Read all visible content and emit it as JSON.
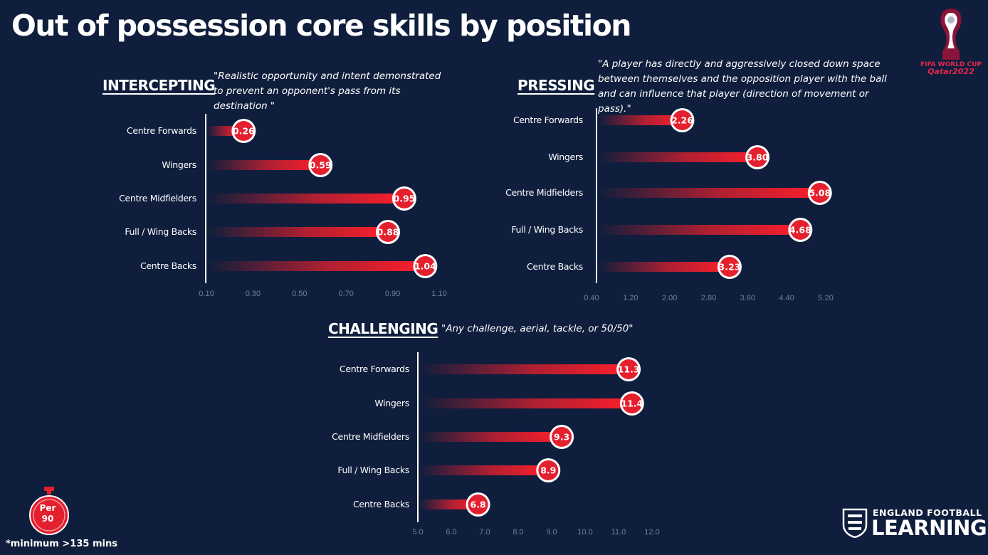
{
  "title": "Out of possession core skills by position",
  "logo": {
    "brand_line1": "FIFA WORLD CUP",
    "brand_line2": "Qatar2022"
  },
  "per90": {
    "line1": "Per",
    "line2": "90",
    "footnote": "*minimum >135 mins"
  },
  "efl": {
    "line1": "ENGLAND FOOTBALL",
    "line2": "LEARNING"
  },
  "colors": {
    "background": "#0f1e3c",
    "bar": "#e5202e",
    "badge_fill": "#e5202e",
    "badge_ring": "#ffffff",
    "tick": "#6e7f9e"
  },
  "chart_data": [
    {
      "type": "bar",
      "orientation": "horizontal",
      "title": "INTERCEPTING",
      "subtitle": "\"Realistic opportunity and intent demonstrated to prevent an opponent's pass from its destination \"",
      "categories": [
        "Centre Forwards",
        "Wingers",
        "Centre Midfielders",
        "Full / Wing Backs",
        "Centre Backs"
      ],
      "values": [
        0.26,
        0.59,
        0.95,
        0.88,
        1.04
      ],
      "value_labels": [
        "0.26",
        "0.59",
        "0.95",
        "0.88",
        "1.04"
      ],
      "xlim": [
        0.1,
        1.1
      ],
      "xticks": [
        "0.10",
        "0.30",
        "0.50",
        "0.70",
        "0.90",
        "1.10"
      ],
      "xlabel": "",
      "ylabel": "",
      "grid": false,
      "legend": null
    },
    {
      "type": "bar",
      "orientation": "horizontal",
      "title": "PRESSING",
      "subtitle": "\"A player has directly and aggressively closed down space between themselves and the opposition player with the ball and can influence that player (direction of movement or pass).\"",
      "categories": [
        "Centre Forwards",
        "Wingers",
        "Centre Midfielders",
        "Full / Wing Backs",
        "Centre Backs"
      ],
      "values": [
        2.26,
        3.8,
        5.08,
        4.68,
        3.23
      ],
      "value_labels": [
        "2.26",
        "3.80",
        "5.08",
        "4.68",
        "3.23"
      ],
      "xlim": [
        0.4,
        5.2
      ],
      "xticks": [
        "0.40",
        "1.20",
        "2.00",
        "2.80",
        "3.60",
        "4.40",
        "5.20"
      ],
      "xlabel": "",
      "ylabel": "",
      "grid": false,
      "legend": null
    },
    {
      "type": "bar",
      "orientation": "horizontal",
      "title": "CHALLENGING",
      "subtitle": "\"Any challenge, aerial, tackle, or 50/50\"",
      "categories": [
        "Centre Forwards",
        "Wingers",
        "Centre Midfielders",
        "Full / Wing Backs",
        "Centre Backs"
      ],
      "values": [
        11.3,
        11.4,
        9.3,
        8.9,
        6.8
      ],
      "value_labels": [
        "11.3",
        "11.4",
        "9.3",
        "8.9",
        "6.8"
      ],
      "xlim": [
        5.0,
        12.0
      ],
      "xticks": [
        "5.0",
        "6.0",
        "7.0",
        "8.0",
        "9.0",
        "10.0",
        "11.0",
        "12.0"
      ],
      "xlabel": "",
      "ylabel": "",
      "grid": false,
      "legend": null
    }
  ]
}
